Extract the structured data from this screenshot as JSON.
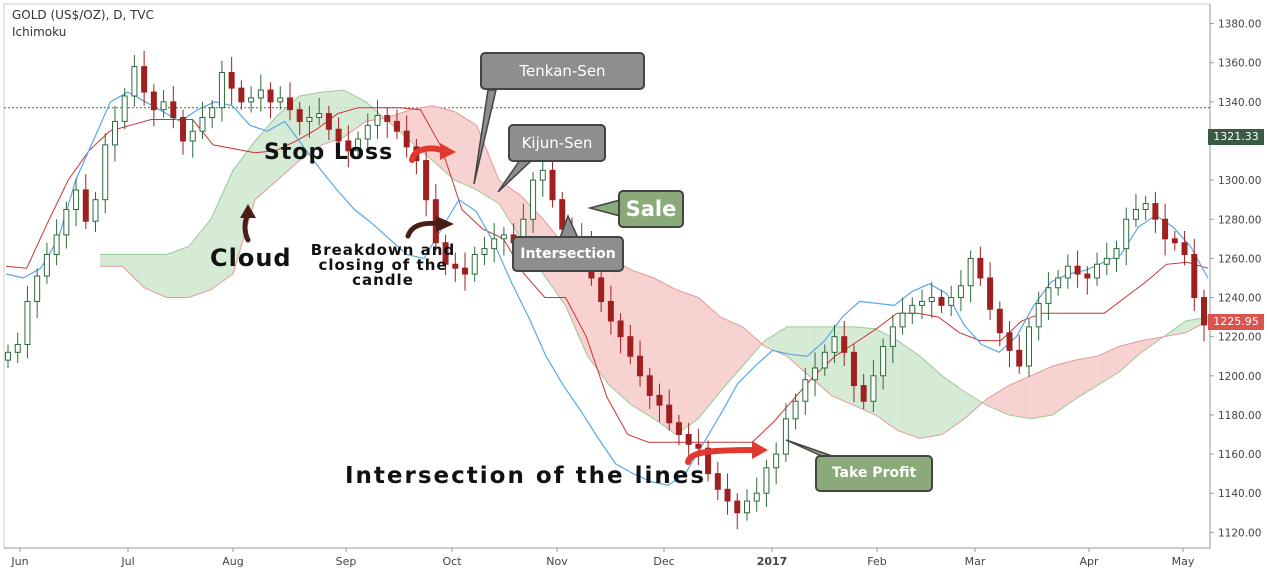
{
  "header": {
    "title": "GOLD (US$/OZ), D, TVC",
    "indicator": "Ichimoku"
  },
  "annotations": {
    "tenkan": "Tenkan-Sen",
    "kijun": "Kijun-Sen",
    "sale": "Sale",
    "intersection": "Intersection",
    "take_profit": "Take Profit",
    "stop_loss": "Stop Loss",
    "cloud": "Cloud",
    "breakdown": "Breakdown and closing of the candle",
    "lines_intersection": "Intersection of the lines"
  },
  "badges": {
    "current_price": "1321.33",
    "last_price": "1225.95"
  },
  "colors": {
    "up_candle": "#2e6b3a",
    "down_candle": "#a02020",
    "tenkan_line": "#5aa8e6",
    "kijun_line": "#cc3333",
    "cloud_green": "#cfe8cf",
    "cloud_red": "#f7c9c9",
    "arrow_red": "#e03a30",
    "arrow_brown": "#4a1e14",
    "gray_callout": "#8e8e8e",
    "green_callout": "#8aaa7a",
    "price_badge_dark": "#3b5a45",
    "price_badge_red": "#d9534f"
  },
  "chart_data": {
    "type": "candlestick",
    "title": "GOLD (US$/OZ), D, TVC",
    "indicator": "Ichimoku",
    "ylim": [
      1112,
      1390
    ],
    "y_ticks": [
      "1120.00",
      "1140.00",
      "1160.00",
      "1180.00",
      "1200.00",
      "1220.00",
      "1240.00",
      "1260.00",
      "1280.00",
      "1300.00",
      "1320.00",
      "1340.00",
      "1360.00",
      "1380.00"
    ],
    "x_ticks": [
      "Jun",
      "Jul",
      "Aug",
      "Sep",
      "Oct",
      "Nov",
      "Dec",
      "2017",
      "Feb",
      "Mar",
      "Apr",
      "May"
    ],
    "reference_line": 1337,
    "price_close": [
      1212,
      1216,
      1238,
      1251,
      1262,
      1272,
      1285,
      1295,
      1279,
      1290,
      1318,
      1330,
      1343,
      1358,
      1345,
      1336,
      1340,
      1332,
      1320,
      1325,
      1332,
      1337,
      1355,
      1347,
      1340,
      1342,
      1346,
      1340,
      1342,
      1336,
      1330,
      1332,
      1334,
      1326,
      1320,
      1315,
      1321,
      1328,
      1333,
      1330,
      1325,
      1317,
      1310,
      1290,
      1268,
      1257,
      1255,
      1252,
      1262,
      1265,
      1270,
      1272,
      1268,
      1280,
      1300,
      1305,
      1290,
      1275,
      1265,
      1270,
      1250,
      1238,
      1228,
      1220,
      1210,
      1200,
      1190,
      1185,
      1176,
      1170,
      1165,
      1163,
      1150,
      1142,
      1136,
      1130,
      1136,
      1140,
      1153,
      1160,
      1178,
      1187,
      1198,
      1204,
      1212,
      1220,
      1212,
      1195,
      1187,
      1200,
      1215,
      1225,
      1232,
      1236,
      1238,
      1240,
      1236,
      1240,
      1246,
      1260,
      1250,
      1234,
      1222,
      1213,
      1205,
      1225,
      1237,
      1245,
      1250,
      1256,
      1252,
      1250,
      1257,
      1260,
      1265,
      1280,
      1285,
      1288,
      1280,
      1270,
      1268,
      1262,
      1240,
      1226
    ],
    "tenkan": [
      1252,
      1250,
      1255,
      1270,
      1300,
      1320,
      1340,
      1345,
      1340,
      1335,
      1330,
      1336,
      1340,
      1338,
      1328,
      1325,
      1330,
      1318,
      1306,
      1295,
      1285,
      1278,
      1270,
      1262,
      1260,
      1275,
      1290,
      1284,
      1268,
      1248,
      1230,
      1210,
      1195,
      1182,
      1168,
      1155,
      1150,
      1146,
      1144,
      1150,
      1165,
      1180,
      1196,
      1205,
      1213,
      1211,
      1210,
      1218,
      1230,
      1238,
      1237,
      1236,
      1243,
      1247,
      1242,
      1226,
      1216,
      1212,
      1220,
      1236,
      1248,
      1252,
      1254,
      1258,
      1262,
      1276,
      1282,
      1276,
      1266,
      1250
    ],
    "kijun": [
      1256,
      1255,
      1278,
      1300,
      1315,
      1325,
      1328,
      1331,
      1331,
      1331,
      1318,
      1316,
      1314,
      1315,
      1320,
      1326,
      1334,
      1337,
      1337,
      1337,
      1336,
      1317,
      1285,
      1275,
      1270,
      1252,
      1240,
      1240,
      1220,
      1189,
      1170,
      1166,
      1166,
      1166,
      1166,
      1166,
      1166,
      1176,
      1188,
      1200,
      1210,
      1217,
      1224,
      1232,
      1232,
      1230,
      1222,
      1218,
      1218,
      1228,
      1232,
      1232,
      1232,
      1232,
      1240,
      1248,
      1257,
      1258,
      1255
    ],
    "cloud_senkou_a": [
      1262,
      1262,
      1262,
      1262,
      1266,
      1280,
      1305,
      1320,
      1333,
      1343,
      1345,
      1346,
      1340,
      1330,
      1320,
      1310,
      1300,
      1295,
      1288,
      1270,
      1252,
      1236,
      1210,
      1195,
      1185,
      1178,
      1170,
      1178,
      1192,
      1205,
      1218,
      1225,
      1225,
      1225,
      1225,
      1224,
      1218,
      1210,
      1200,
      1192,
      1185,
      1180,
      1178,
      1180,
      1188,
      1195,
      1202,
      1212,
      1220,
      1228,
      1230
    ],
    "cloud_senkou_b": [
      1256,
      1256,
      1245,
      1240,
      1240,
      1244,
      1252,
      1290,
      1300,
      1310,
      1318,
      1322,
      1330,
      1332,
      1336,
      1338,
      1335,
      1328,
      1300,
      1292,
      1280,
      1266,
      1264,
      1260,
      1254,
      1250,
      1244,
      1240,
      1230,
      1225,
      1215,
      1210,
      1200,
      1190,
      1185,
      1180,
      1172,
      1168,
      1170,
      1178,
      1188,
      1195,
      1200,
      1205,
      1208,
      1210,
      1215,
      1218,
      1220,
      1222,
      1228
    ]
  }
}
